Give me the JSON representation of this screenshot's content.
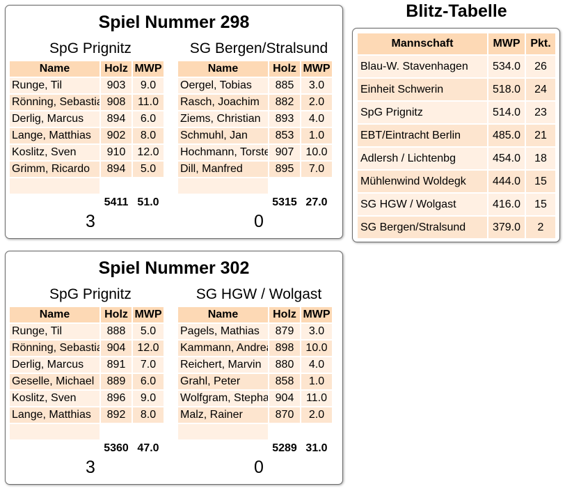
{
  "games": [
    {
      "title": "Spiel Nummer 298",
      "headers": {
        "name": "Name",
        "holz": "Holz",
        "mwp": "MWP"
      },
      "home": {
        "team": "SpG Prignitz",
        "players": [
          {
            "name": "Runge, Til",
            "holz": "903",
            "mwp": "9.0"
          },
          {
            "name": "Rönning, Sebastian",
            "holz": "908",
            "mwp": "11.0"
          },
          {
            "name": "Derlig, Marcus",
            "holz": "894",
            "mwp": "6.0"
          },
          {
            "name": "Lange, Matthias",
            "holz": "902",
            "mwp": "8.0"
          },
          {
            "name": "Koslitz, Sven",
            "holz": "910",
            "mwp": "12.0"
          },
          {
            "name": "Grimm, Ricardo",
            "holz": "894",
            "mwp": "5.0"
          }
        ],
        "total_holz": "5411",
        "total_mwp": "51.0",
        "result": "3"
      },
      "away": {
        "team": "SG Bergen/Stralsund",
        "players": [
          {
            "name": "Oergel, Tobias",
            "holz": "885",
            "mwp": "3.0"
          },
          {
            "name": "Rasch, Joachim",
            "holz": "882",
            "mwp": "2.0"
          },
          {
            "name": "Ziems, Christian",
            "holz": "893",
            "mwp": "4.0"
          },
          {
            "name": "Schmuhl, Jan",
            "holz": "853",
            "mwp": "1.0"
          },
          {
            "name": "Hochmann, Torsten",
            "holz": "907",
            "mwp": "10.0"
          },
          {
            "name": "Dill, Manfred",
            "holz": "895",
            "mwp": "7.0"
          }
        ],
        "total_holz": "5315",
        "total_mwp": "27.0",
        "result": "0"
      }
    },
    {
      "title": "Spiel Nummer 302",
      "headers": {
        "name": "Name",
        "holz": "Holz",
        "mwp": "MWP"
      },
      "home": {
        "team": "SpG Prignitz",
        "players": [
          {
            "name": "Runge, Til",
            "holz": "888",
            "mwp": "5.0"
          },
          {
            "name": "Rönning, Sebastian",
            "holz": "904",
            "mwp": "12.0"
          },
          {
            "name": "Derlig, Marcus",
            "holz": "891",
            "mwp": "7.0"
          },
          {
            "name": "Geselle, Michael",
            "holz": "889",
            "mwp": "6.0"
          },
          {
            "name": "Koslitz, Sven",
            "holz": "896",
            "mwp": "9.0"
          },
          {
            "name": "Lange, Matthias",
            "holz": "892",
            "mwp": "8.0"
          }
        ],
        "total_holz": "5360",
        "total_mwp": "47.0",
        "result": "3"
      },
      "away": {
        "team": "SG HGW / Wolgast",
        "players": [
          {
            "name": "Pagels, Mathias",
            "holz": "879",
            "mwp": "3.0"
          },
          {
            "name": "Kammann, Andreas",
            "holz": "898",
            "mwp": "10.0"
          },
          {
            "name": "Reichert, Marvin",
            "holz": "880",
            "mwp": "4.0"
          },
          {
            "name": "Grahl, Peter",
            "holz": "858",
            "mwp": "1.0"
          },
          {
            "name": "Wolfgram, Stephan",
            "holz": "904",
            "mwp": "11.0"
          },
          {
            "name": "Malz, Rainer",
            "holz": "870",
            "mwp": "2.0"
          }
        ],
        "total_holz": "5289",
        "total_mwp": "31.0",
        "result": "0"
      }
    }
  ],
  "blitz": {
    "title": "Blitz-Tabelle",
    "headers": {
      "team": "Mannschaft",
      "mwp": "MWP",
      "pkt": "Pkt."
    },
    "rows": [
      {
        "team": "Blau-W. Stavenhagen",
        "mwp": "534.0",
        "pkt": "26"
      },
      {
        "team": "Einheit Schwerin",
        "mwp": "518.0",
        "pkt": "24"
      },
      {
        "team": "SpG Prignitz",
        "mwp": "514.0",
        "pkt": "23"
      },
      {
        "team": "EBT/Eintracht Berlin",
        "mwp": "485.0",
        "pkt": "21"
      },
      {
        "team": "Adlersh / Lichtenbg",
        "mwp": "454.0",
        "pkt": "18"
      },
      {
        "team": "Mühlenwind Woldegk",
        "mwp": "444.0",
        "pkt": "15"
      },
      {
        "team": "SG HGW / Wolgast",
        "mwp": "416.0",
        "pkt": "15"
      },
      {
        "team": "SG Bergen/Stralsund",
        "mwp": "379.0",
        "pkt": "2"
      }
    ]
  }
}
